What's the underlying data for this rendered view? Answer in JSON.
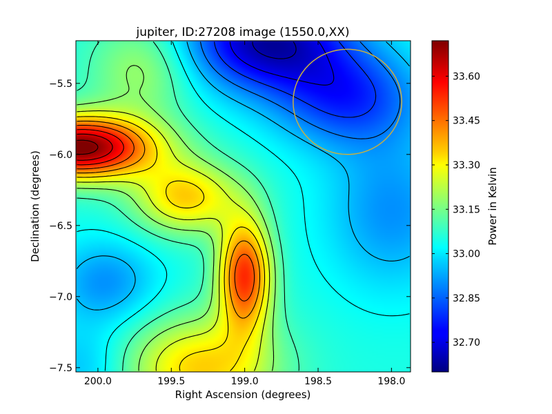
{
  "chart_data": {
    "type": "heatmap",
    "title": "jupiter, ID:27208 image (1550.0,XX)",
    "xlabel": "Right Ascension (degrees)",
    "ylabel": "Declination (degrees)",
    "xlim": [
      200.15,
      197.87
    ],
    "ylim": [
      -7.53,
      -5.2
    ],
    "x_ticks": [
      {
        "value": 200.0,
        "label": "200.0"
      },
      {
        "value": 199.5,
        "label": "199.5"
      },
      {
        "value": 199.0,
        "label": "199.0"
      },
      {
        "value": 198.5,
        "label": "198.5"
      },
      {
        "value": 198.0,
        "label": "198.0"
      }
    ],
    "y_ticks": [
      {
        "value": -5.5,
        "label": "−5.5"
      },
      {
        "value": -6.0,
        "label": "−6.0"
      },
      {
        "value": -6.5,
        "label": "−6.5"
      },
      {
        "value": -7.0,
        "label": "−7.0"
      },
      {
        "value": -7.5,
        "label": "−7.5"
      }
    ],
    "colorbar": {
      "label": "Power in Kelvin",
      "range": [
        32.6,
        33.72
      ],
      "colormap": "jet",
      "ticks": [
        {
          "value": 32.7,
          "label": "32.70"
        },
        {
          "value": 32.85,
          "label": "32.85"
        },
        {
          "value": 33.0,
          "label": "33.00"
        },
        {
          "value": 33.15,
          "label": "33.15"
        },
        {
          "value": 33.3,
          "label": "33.30"
        },
        {
          "value": 33.45,
          "label": "33.45"
        },
        {
          "value": 33.6,
          "label": "33.60"
        }
      ]
    },
    "features": [
      {
        "kind": "maximum",
        "ra": 200.12,
        "dec": -5.95,
        "value": 33.72
      },
      {
        "kind": "maximum",
        "ra": 199.0,
        "dec": -6.82,
        "value": 33.52
      },
      {
        "kind": "minimum",
        "ra": 198.85,
        "dec": -5.2,
        "value": 32.6
      }
    ],
    "annotations": [
      {
        "kind": "circle",
        "ra_center": 198.3,
        "dec_center": -5.63,
        "ra_radius": 0.37,
        "dec_radius": 0.37,
        "color": "#c8b040"
      }
    ],
    "contours": "on",
    "grid": false
  }
}
